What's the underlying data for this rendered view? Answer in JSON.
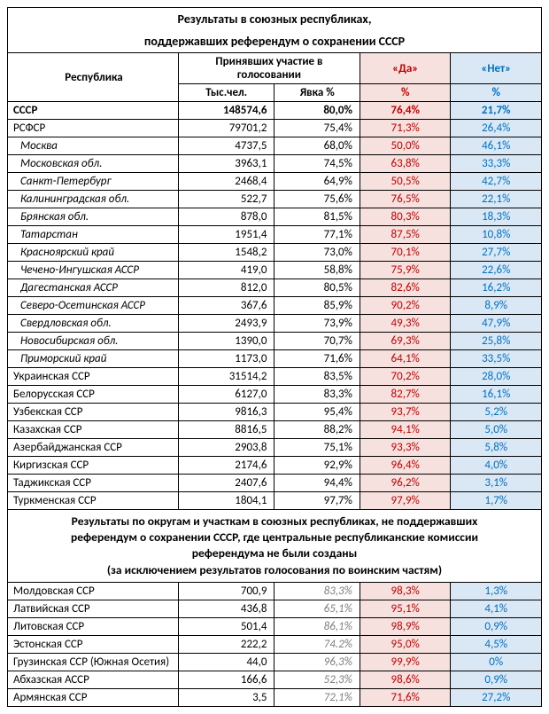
{
  "title_line1": "Результаты в союзных республиках,",
  "title_line2": "поддержавших референдум о сохранении СССР",
  "header_republic": "Республика",
  "header_participated": "Принявших участие в голосовании",
  "header_yes": "«Да»",
  "header_no": "«Нет»",
  "header_thousand": "Тыс.чел.",
  "header_turnout": "Явка %",
  "header_pct": "%",
  "mid_title_l1": "Результаты по округам и участкам в союзных республиках, не поддержавших",
  "mid_title_l2": "референдум о сохранении СССР, где центральные республиканские комиссии",
  "mid_title_l3": "референдума не были созданы",
  "mid_title_l4": "(за исключением результатов голосования по воинским частям)",
  "rows_a": [
    {
      "name": "СССР",
      "thou": "148574,6",
      "turn": "80,0%",
      "yes": "76,4%",
      "no": "21,7%",
      "bold": true
    },
    {
      "name": "РСФСР",
      "thou": "79701,2",
      "turn": "75,4%",
      "yes": "71,3%",
      "no": "26,4%"
    },
    {
      "name": "Москва",
      "thou": "4737,5",
      "turn": "68,0%",
      "yes": "50,0%",
      "no": "46,1%",
      "ital": true
    },
    {
      "name": "Московская обл.",
      "thou": "3963,1",
      "turn": "74,5%",
      "yes": "63,8%",
      "no": "33,3%",
      "ital": true
    },
    {
      "name": "Санкт-Петербург",
      "thou": "2468,4",
      "turn": "64,9%",
      "yes": "50,5%",
      "no": "42,7%",
      "ital": true
    },
    {
      "name": "Калининградская обл.",
      "thou": "522,7",
      "turn": "75,6%",
      "yes": "76,5%",
      "no": "22,1%",
      "ital": true
    },
    {
      "name": "Брянская обл.",
      "thou": "878,0",
      "turn": "81,5%",
      "yes": "80,3%",
      "no": "18,3%",
      "ital": true
    },
    {
      "name": "Татарстан",
      "thou": "1951,4",
      "turn": "77,1%",
      "yes": "87,5%",
      "no": "10,8%",
      "ital": true
    },
    {
      "name": "Красноярский край",
      "thou": "1548,2",
      "turn": "73,0%",
      "yes": "70,1%",
      "no": "27,7%",
      "ital": true
    },
    {
      "name": "Чечено-Ингушская АССР",
      "thou": "419,0",
      "turn": "58,8%",
      "yes": "75,9%",
      "no": "22,6%",
      "ital": true
    },
    {
      "name": "Дагестанская АССР",
      "thou": "812,0",
      "turn": "80,5%",
      "yes": "82,6%",
      "no": "16,2%",
      "ital": true
    },
    {
      "name": "Северо-Осетинская АССР",
      "thou": "367,6",
      "turn": "85,9%",
      "yes": "90,2%",
      "no": "8,9%",
      "ital": true
    },
    {
      "name": "Свердловская обл.",
      "thou": "2493,9",
      "turn": "73,9%",
      "yes": "49,3%",
      "no": "47,9%",
      "ital": true
    },
    {
      "name": "Новосибирская обл.",
      "thou": "1390,0",
      "turn": "70,7%",
      "yes": "69,3%",
      "no": "25,8%",
      "ital": true
    },
    {
      "name": "Приморский край",
      "thou": "1173,0",
      "turn": "71,6%",
      "yes": "64,1%",
      "no": "33,5%",
      "ital": true
    },
    {
      "name": "Украинская ССР",
      "thou": "31514,2",
      "turn": "83,5%",
      "yes": "70,2%",
      "no": "28,0%"
    },
    {
      "name": "Белорусская ССР",
      "thou": "6127,0",
      "turn": "83,3%",
      "yes": "82,7%",
      "no": "16,1%"
    },
    {
      "name": "Узбекская ССР",
      "thou": "9816,3",
      "turn": "95,4%",
      "yes": "93,7%",
      "no": "5,2%"
    },
    {
      "name": "Казахская ССР",
      "thou": "8816,5",
      "turn": "88,2%",
      "yes": "94,1%",
      "no": "5,0%"
    },
    {
      "name": "Азербайджанская ССР",
      "thou": "2903,8",
      "turn": "75,1%",
      "yes": "93,3%",
      "no": "5,8%"
    },
    {
      "name": "Киргизская ССР",
      "thou": "2174,6",
      "turn": "92,9%",
      "yes": "96,4%",
      "no": "4,0%"
    },
    {
      "name": "Таджикская ССР",
      "thou": "2407,6",
      "turn": "94,4%",
      "yes": "96,2%",
      "no": "3,1%"
    },
    {
      "name": "Туркменская ССР",
      "thou": "1804,1",
      "turn": "97,7%",
      "yes": "97,9%",
      "no": "1,7%"
    }
  ],
  "rows_b": [
    {
      "name": "Молдовская ССР",
      "thou": "700,9",
      "turn": "83,3%",
      "yes": "98,3%",
      "no": "1,3%"
    },
    {
      "name": "Латвийская ССР",
      "thou": "436,8",
      "turn": "65,1%",
      "yes": "95,1%",
      "no": "4,1%"
    },
    {
      "name": "Литовская ССР",
      "thou": "501,4",
      "turn": "86,1%",
      "yes": "98,9%",
      "no": "0,9%"
    },
    {
      "name": "Эстонская ССР",
      "thou": "222,2",
      "turn": "74.2%",
      "yes": "95,0%",
      "no": "4,5%"
    },
    {
      "name": "Грузинская ССР (Южная Осетия)",
      "thou": "44,0",
      "turn": "96,3%",
      "yes": "99,9%",
      "no": "0%"
    },
    {
      "name": "Абхазская АССР",
      "thou": "166,6",
      "turn": "52,3%",
      "yes": "98,6%",
      "no": "0,9%"
    },
    {
      "name": "Армянская ССР",
      "thou": "3,5",
      "turn": "72,1%",
      "yes": "71,6%",
      "no": "27,2%"
    }
  ]
}
